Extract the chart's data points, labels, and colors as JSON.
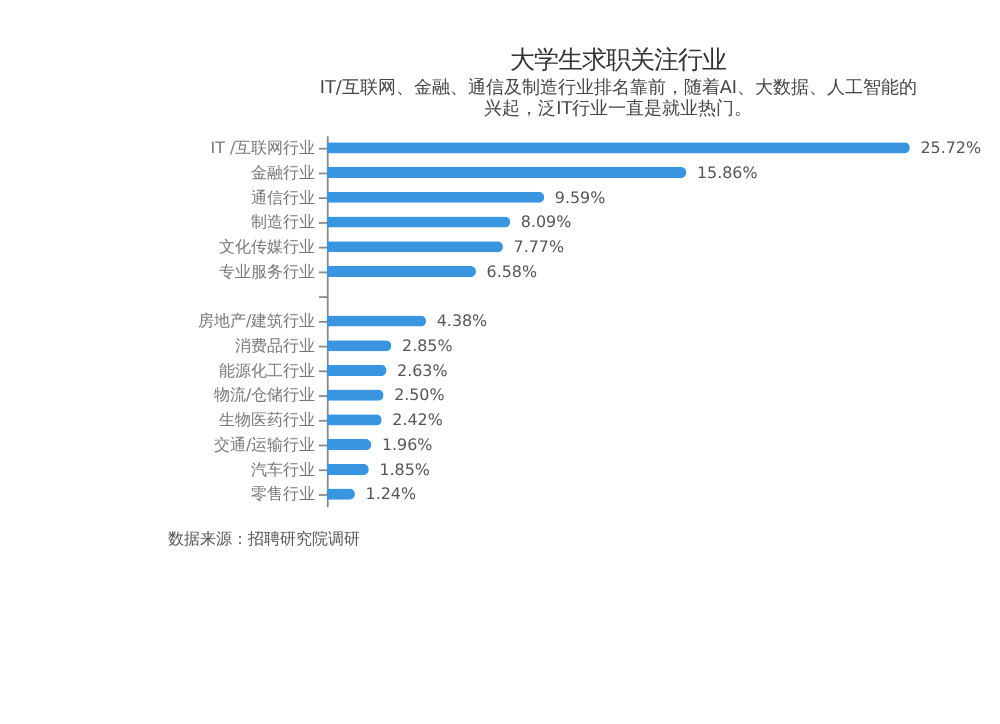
{
  "chart_data": {
    "type": "bar",
    "orientation": "horizontal",
    "title": "大学生求职关注行业",
    "subtitle": [
      "IT/互联网、金融、通信及制造行业排名靠前，随着AI、大数据、人工智能的",
      "兴起，泛IT行业一直是就业热门。"
    ],
    "categories": [
      "IT /互联网行业",
      "金融行业",
      "通信行业",
      "制造行业",
      "文化传媒行业",
      "专业服务行业",
      null,
      "房地产/建筑行业",
      "消费品行业",
      "能源化工行业",
      "物流/仓储行业",
      "生物医药行业",
      "交通/运输行业",
      "汽车行业",
      "零售行业"
    ],
    "values": [
      25.72,
      15.86,
      9.59,
      8.09,
      7.77,
      6.58,
      null,
      4.38,
      2.85,
      2.63,
      2.5,
      2.42,
      1.96,
      1.85,
      1.24
    ],
    "value_labels": [
      "25.72%",
      "15.86%",
      "9.59%",
      "8.09%",
      "7.77%",
      "6.58%",
      null,
      "4.38%",
      "2.85%",
      "2.63%",
      "2.50%",
      "2.42%",
      "1.96%",
      "1.85%",
      "1.24%"
    ],
    "color": "#3a95e0",
    "tick_labels": "y",
    "annotations": [
      "数据来源：招聘研究院调研"
    ]
  }
}
